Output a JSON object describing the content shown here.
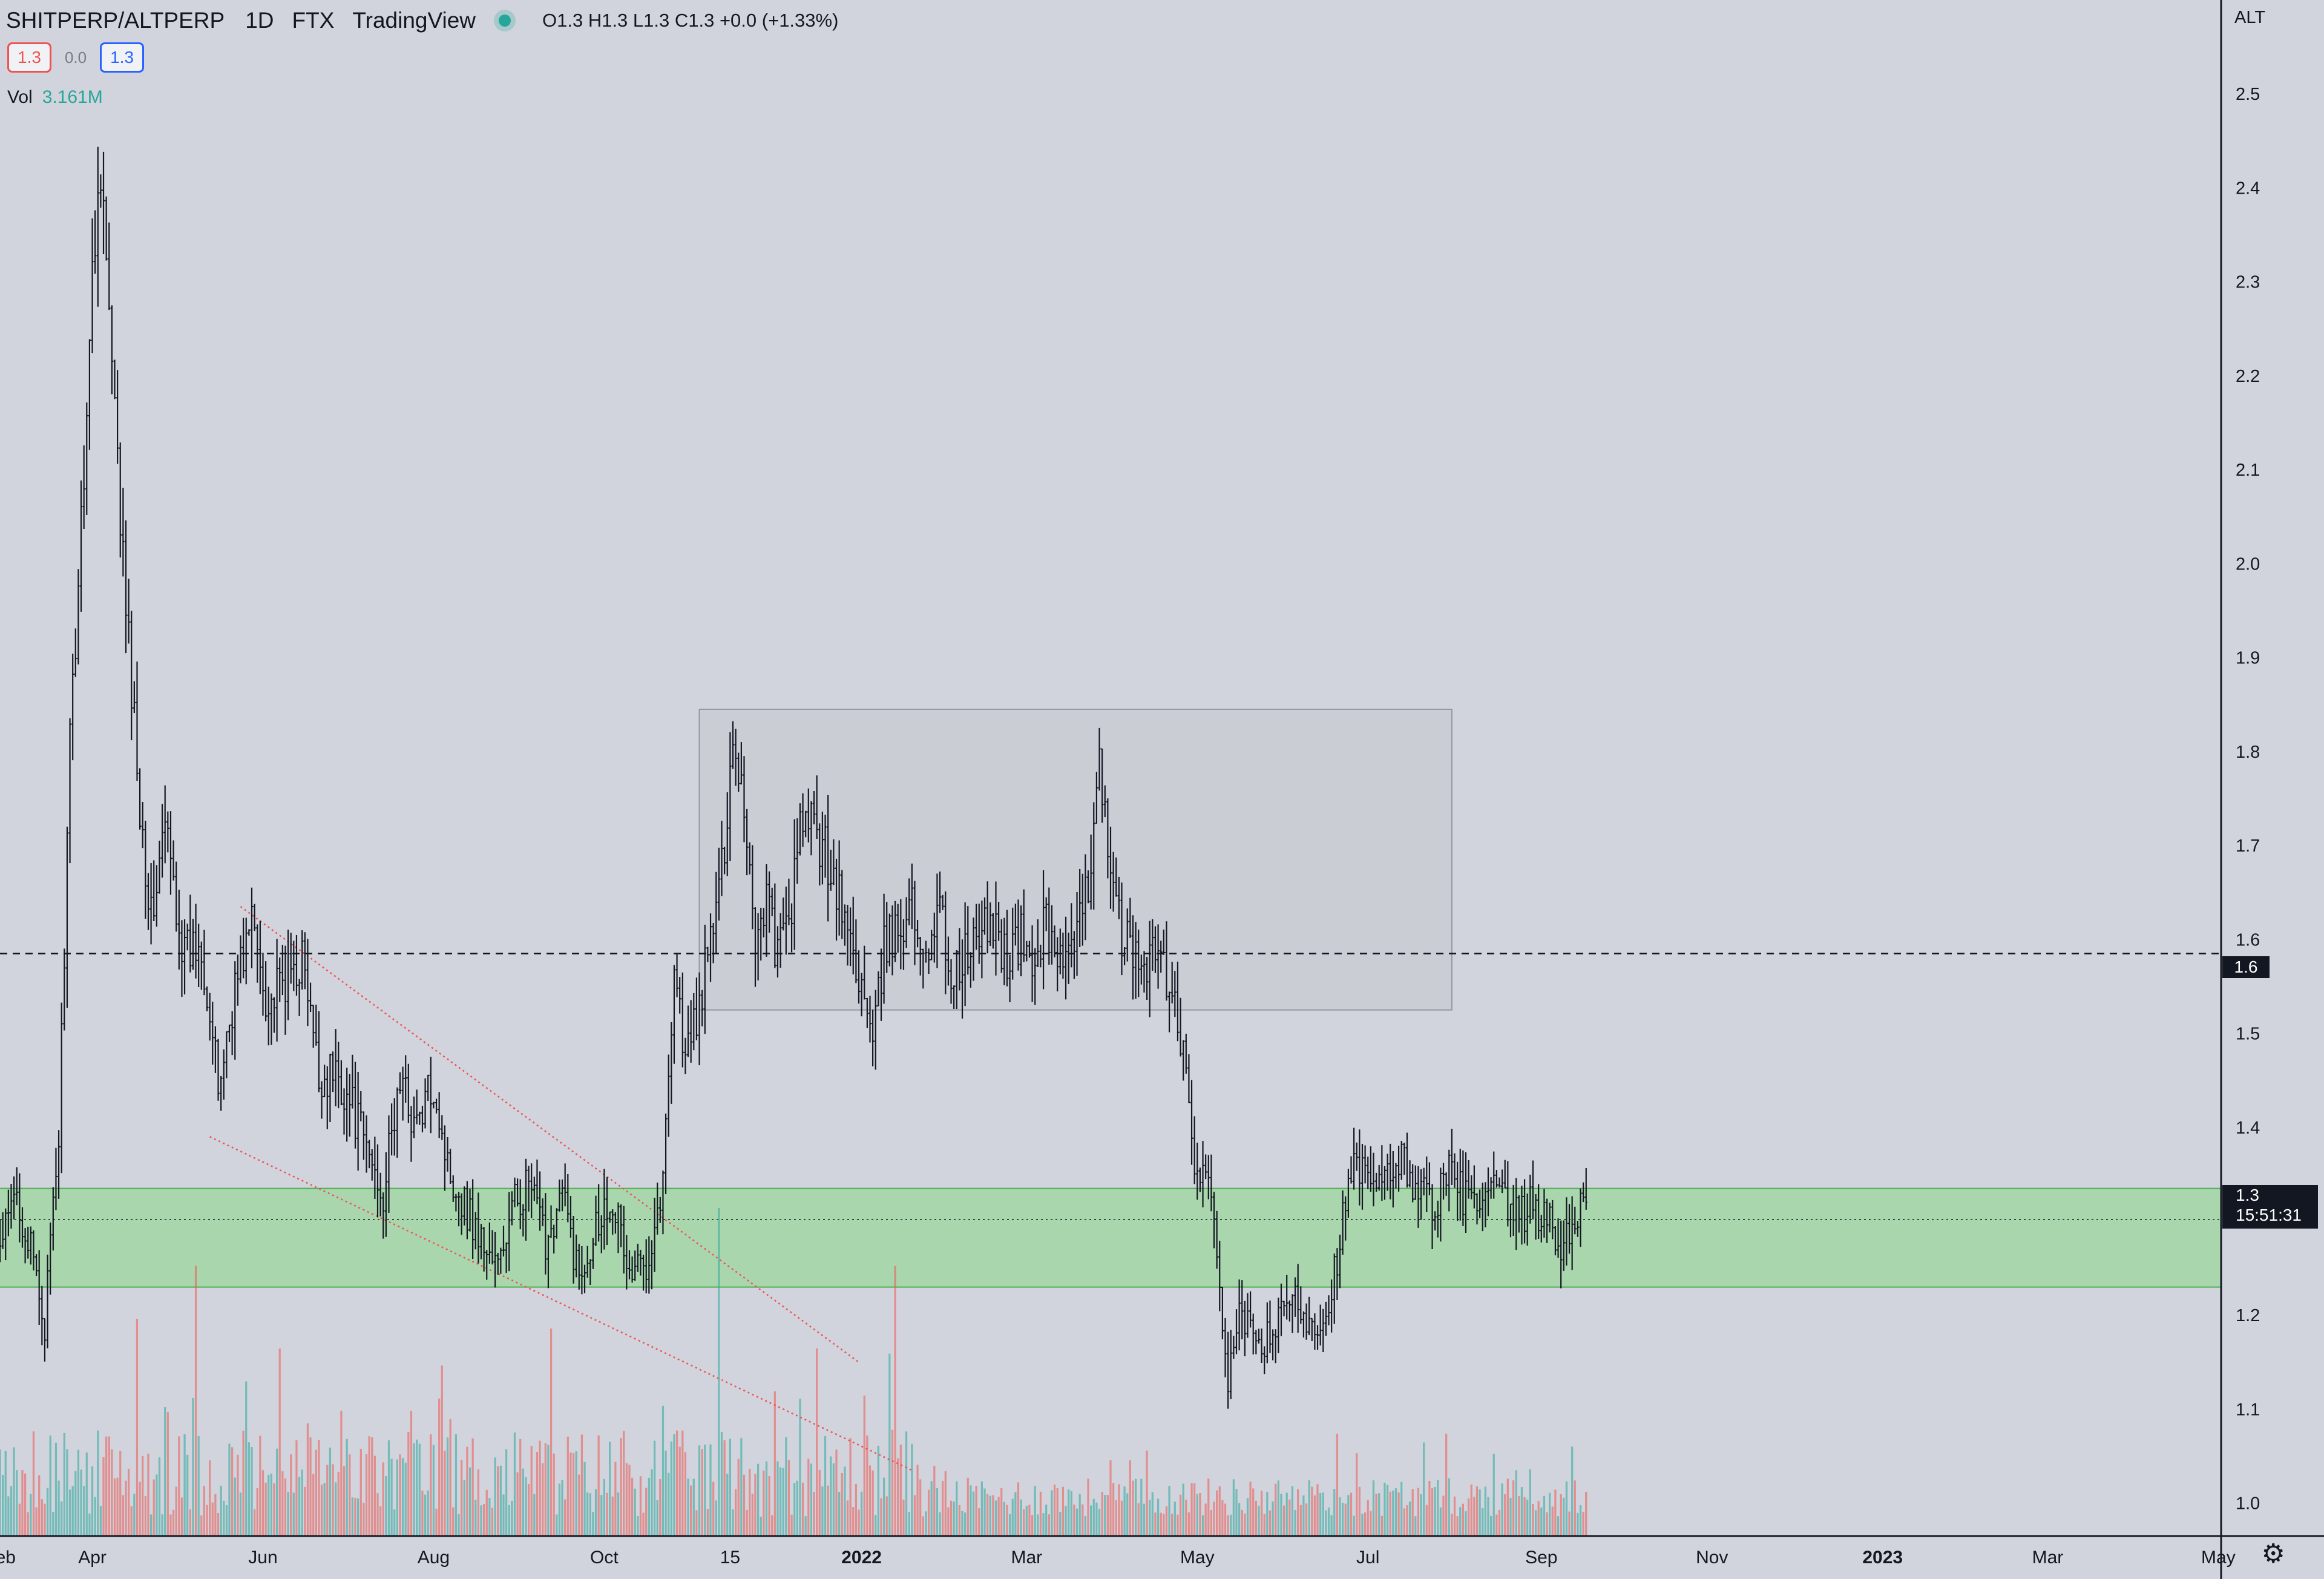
{
  "header": {
    "symbol": "SHITPERP/ALTPERP",
    "timeframe": "1D",
    "exchange": "FTX",
    "provider": "TradingView",
    "ohlc": "O1.3 H1.3 L1.3 C1.3 +0.0 (+1.33%)"
  },
  "legend": {
    "sell_price": "1.3",
    "spread": "0.0",
    "buy_price": "1.3"
  },
  "volume": {
    "label": "Vol",
    "value": "3.161M"
  },
  "price_axis": {
    "unit_label": "ALT",
    "ticks": [
      "2.5",
      "2.4",
      "2.3",
      "2.2",
      "2.1",
      "2.0",
      "1.9",
      "1.8",
      "1.7",
      "1.6",
      "1.5",
      "1.4",
      "1.3",
      "1.2",
      "1.1",
      "1.0"
    ],
    "horizontal_line_label": "1.6",
    "last_price_label": "1.3",
    "countdown": "15:51:31"
  },
  "time_axis": {
    "labels": [
      "eb",
      "Apr",
      "Jun",
      "Aug",
      "Oct",
      "15",
      "2022",
      "Mar",
      "May",
      "Jul",
      "Sep",
      "Nov",
      "2023",
      "Mar",
      "May"
    ]
  },
  "chart_data": {
    "type": "ohlc",
    "title": "",
    "ylabel": "",
    "ylim": [
      0.965,
      2.6
    ],
    "xlim": [
      "2021-02-27",
      "2023-05-02"
    ],
    "grid": false,
    "colors": {
      "bars": "#131722",
      "volume_up": "#26a69a",
      "volume_down": "#ef5350",
      "support_zone": "#a5d6a7",
      "range_box": "#c8cbd3",
      "trendline": "#ef5350"
    },
    "close_path": [
      [
        "2021-02-27",
        1.27
      ],
      [
        "2021-03-05",
        1.33
      ],
      [
        "2021-03-12",
        1.24
      ],
      [
        "2021-03-15",
        1.19
      ],
      [
        "2021-03-20",
        1.39
      ],
      [
        "2021-03-24",
        1.8
      ],
      [
        "2021-03-28",
        2.05
      ],
      [
        "2021-04-01",
        2.3
      ],
      [
        "2021-04-04",
        2.44
      ],
      [
        "2021-04-08",
        2.2
      ],
      [
        "2021-04-13",
        1.95
      ],
      [
        "2021-04-18",
        1.75
      ],
      [
        "2021-04-22",
        1.62
      ],
      [
        "2021-04-27",
        1.72
      ],
      [
        "2021-05-04",
        1.58
      ],
      [
        "2021-05-10",
        1.6
      ],
      [
        "2021-05-16",
        1.44
      ],
      [
        "2021-05-22",
        1.55
      ],
      [
        "2021-05-28",
        1.62
      ],
      [
        "2021-06-03",
        1.53
      ],
      [
        "2021-06-10",
        1.56
      ],
      [
        "2021-06-15",
        1.58
      ],
      [
        "2021-06-21",
        1.45
      ],
      [
        "2021-06-27",
        1.46
      ],
      [
        "2021-07-03",
        1.42
      ],
      [
        "2021-07-09",
        1.37
      ],
      [
        "2021-07-14",
        1.33
      ],
      [
        "2021-07-20",
        1.45
      ],
      [
        "2021-07-26",
        1.4
      ],
      [
        "2021-08-01",
        1.45
      ],
      [
        "2021-08-06",
        1.36
      ],
      [
        "2021-08-12",
        1.32
      ],
      [
        "2021-08-18",
        1.28
      ],
      [
        "2021-08-24",
        1.25
      ],
      [
        "2021-08-30",
        1.32
      ],
      [
        "2021-09-04",
        1.34
      ],
      [
        "2021-09-10",
        1.28
      ],
      [
        "2021-09-16",
        1.33
      ],
      [
        "2021-09-22",
        1.24
      ],
      [
        "2021-09-28",
        1.3
      ],
      [
        "2021-10-04",
        1.33
      ],
      [
        "2021-10-10",
        1.24
      ],
      [
        "2021-10-16",
        1.26
      ],
      [
        "2021-10-22",
        1.34
      ],
      [
        "2021-10-26",
        1.58
      ],
      [
        "2021-10-30",
        1.47
      ],
      [
        "2021-11-04",
        1.53
      ],
      [
        "2021-11-08",
        1.6
      ],
      [
        "2021-11-12",
        1.67
      ],
      [
        "2021-11-16",
        1.82
      ],
      [
        "2021-11-20",
        1.75
      ],
      [
        "2021-11-24",
        1.6
      ],
      [
        "2021-11-28",
        1.65
      ],
      [
        "2021-12-02",
        1.58
      ],
      [
        "2021-12-07",
        1.64
      ],
      [
        "2021-12-11",
        1.73
      ],
      [
        "2021-12-16",
        1.71
      ],
      [
        "2021-12-21",
        1.68
      ],
      [
        "2021-12-26",
        1.62
      ],
      [
        "2022-01-01",
        1.55
      ],
      [
        "2022-01-05",
        1.48
      ],
      [
        "2022-01-09",
        1.59
      ],
      [
        "2022-01-14",
        1.61
      ],
      [
        "2022-01-18",
        1.64
      ],
      [
        "2022-01-23",
        1.59
      ],
      [
        "2022-01-29",
        1.63
      ],
      [
        "2022-02-02",
        1.56
      ],
      [
        "2022-02-07",
        1.58
      ],
      [
        "2022-02-12",
        1.6
      ],
      [
        "2022-02-17",
        1.62
      ],
      [
        "2022-02-22",
        1.58
      ],
      [
        "2022-02-27",
        1.6
      ],
      [
        "2022-03-03",
        1.57
      ],
      [
        "2022-03-08",
        1.62
      ],
      [
        "2022-03-13",
        1.58
      ],
      [
        "2022-03-18",
        1.58
      ],
      [
        "2022-03-23",
        1.66
      ],
      [
        "2022-03-27",
        1.81
      ],
      [
        "2022-03-31",
        1.65
      ],
      [
        "2022-04-05",
        1.6
      ],
      [
        "2022-04-10",
        1.57
      ],
      [
        "2022-04-15",
        1.59
      ],
      [
        "2022-04-20",
        1.56
      ],
      [
        "2022-04-25",
        1.5
      ],
      [
        "2022-04-29",
        1.38
      ],
      [
        "2022-05-03",
        1.34
      ],
      [
        "2022-05-07",
        1.31
      ],
      [
        "2022-05-10",
        1.2
      ],
      [
        "2022-05-12",
        1.11
      ],
      [
        "2022-05-15",
        1.2
      ],
      [
        "2022-05-20",
        1.18
      ],
      [
        "2022-05-25",
        1.17
      ],
      [
        "2022-05-30",
        1.19
      ],
      [
        "2022-06-04",
        1.22
      ],
      [
        "2022-06-09",
        1.2
      ],
      [
        "2022-06-14",
        1.19
      ],
      [
        "2022-06-18",
        1.23
      ],
      [
        "2022-06-22",
        1.3
      ],
      [
        "2022-06-26",
        1.36
      ],
      [
        "2022-07-01",
        1.34
      ],
      [
        "2022-07-06",
        1.33
      ],
      [
        "2022-07-11",
        1.37
      ],
      [
        "2022-07-16",
        1.35
      ],
      [
        "2022-07-21",
        1.33
      ],
      [
        "2022-07-25",
        1.32
      ],
      [
        "2022-07-30",
        1.35
      ],
      [
        "2022-08-04",
        1.33
      ],
      [
        "2022-08-09",
        1.31
      ],
      [
        "2022-08-14",
        1.33
      ],
      [
        "2022-08-19",
        1.32
      ],
      [
        "2022-08-24",
        1.3
      ],
      [
        "2022-08-29",
        1.32
      ],
      [
        "2022-09-03",
        1.3
      ],
      [
        "2022-09-08",
        1.27
      ],
      [
        "2022-09-12",
        1.3
      ],
      [
        "2022-09-16",
        1.32
      ],
      [
        "2022-09-18",
        1.31
      ]
    ],
    "volume_ylim": [
      0,
      700000
    ],
    "volume_spikes": [
      [
        "2021-04-17",
        450000,
        "down"
      ],
      [
        "2021-05-08",
        560000,
        "down"
      ],
      [
        "2021-09-12",
        430000,
        "down"
      ],
      [
        "2021-11-11",
        680000,
        "up"
      ],
      [
        "2022-01-13",
        560000,
        "down"
      ],
      [
        "2021-12-01",
        300000,
        "down"
      ],
      [
        "2021-10-22",
        270000,
        "up"
      ],
      [
        "2022-01-12",
        220000,
        "down"
      ]
    ],
    "horizontal_line": 1.585,
    "last_price": 1.3,
    "zones": [
      {
        "type": "support",
        "from": "2021-02-27",
        "to": "2023-05-02",
        "y_low": 1.23,
        "y_high": 1.335
      },
      {
        "type": "range",
        "from": "2021-11-04",
        "to": "2022-07-31",
        "y_low": 1.525,
        "y_high": 1.845
      }
    ],
    "trendlines": [
      {
        "x1": "2021-05-24",
        "y1": 1.635,
        "x2": "2021-12-31",
        "y2": 1.15
      },
      {
        "x1": "2021-05-13",
        "y1": 1.39,
        "x2": "2022-01-19",
        "y2": 1.035
      }
    ]
  }
}
